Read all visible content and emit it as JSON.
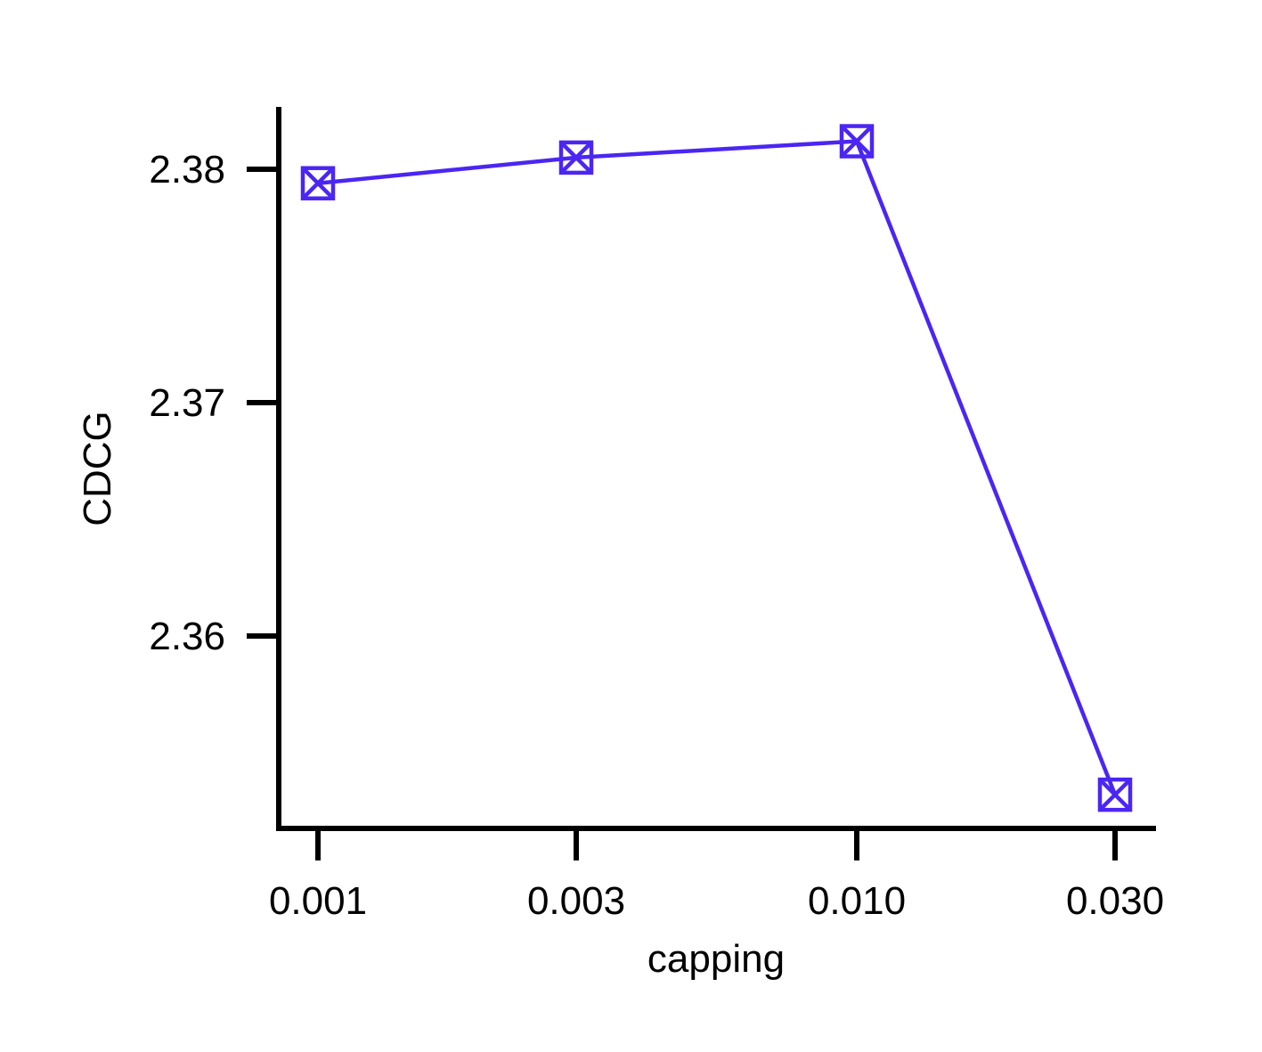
{
  "chart_data": {
    "type": "line",
    "x_categories": [
      "0.001",
      "0.003",
      "0.010",
      "0.030"
    ],
    "x_tick_labels": [
      "0.001",
      "0.003",
      "0.010",
      "0.030"
    ],
    "series": [
      {
        "values": [
          2.3794,
          2.3805,
          2.3812,
          2.3532
        ],
        "color": "#4B26F2",
        "marker": "boxed-x"
      }
    ],
    "xlabel": "capping",
    "ylabel": "CDCG",
    "ylim": [
      2.3517,
      2.3826
    ],
    "y_ticks": [
      2.36,
      2.37,
      2.38
    ],
    "y_tick_labels": [
      "2.36",
      "2.37",
      "2.38"
    ],
    "grid": false,
    "legend": "none"
  }
}
